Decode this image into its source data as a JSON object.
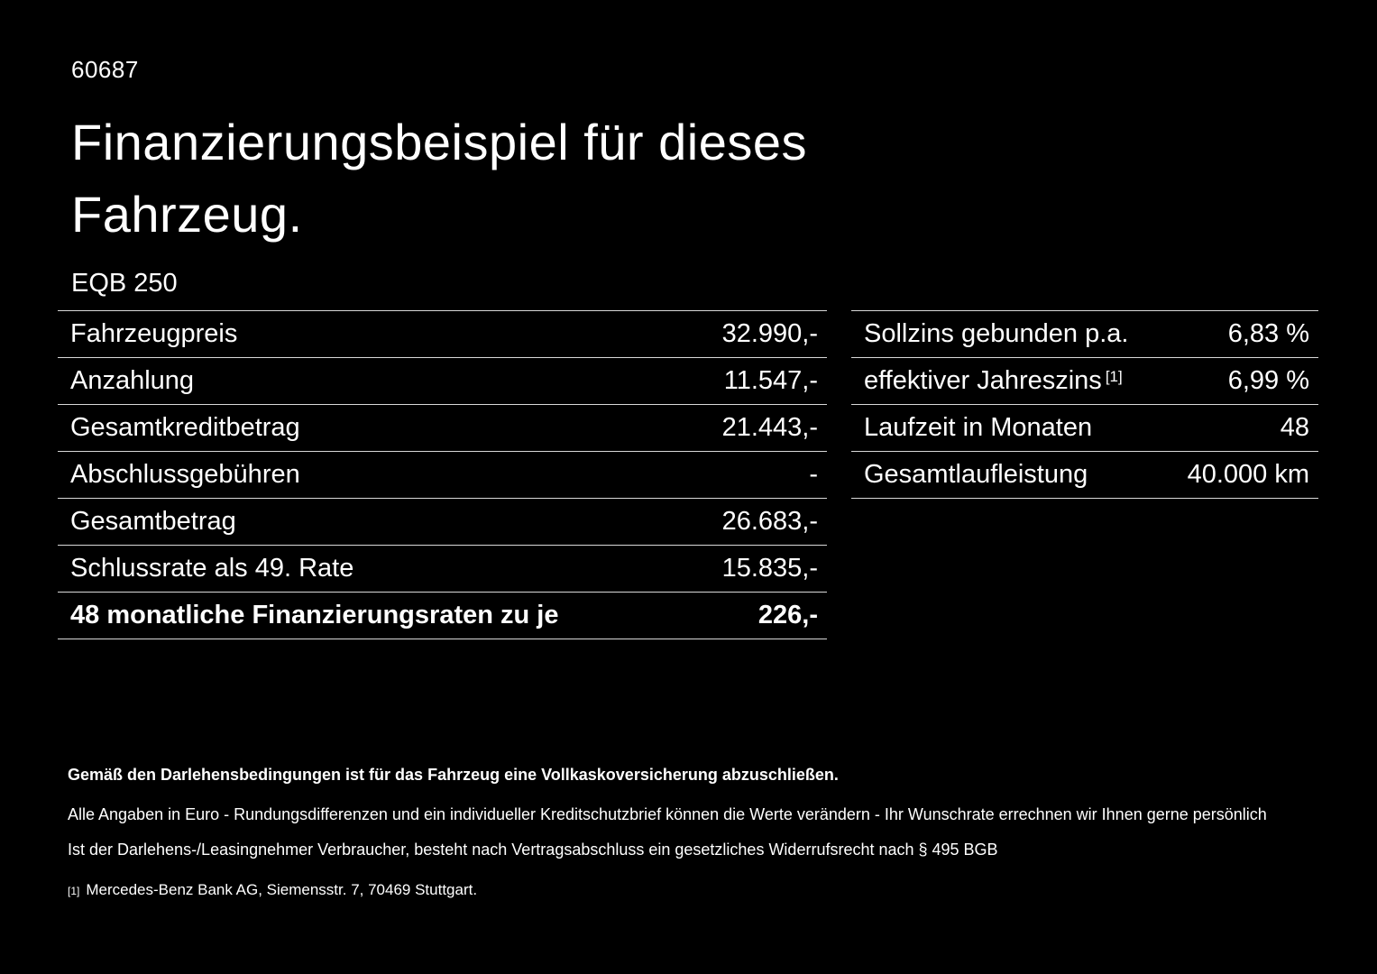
{
  "page": {
    "id_number": "60687",
    "title_line1": "Finanzierungsbeispiel für dieses",
    "title_line2": "Fahrzeug.",
    "model": "EQB 250"
  },
  "left_table": {
    "rows": [
      {
        "label": "Fahrzeugpreis",
        "value": "32.990,-"
      },
      {
        "label": "Anzahlung",
        "value": "11.547,-"
      },
      {
        "label": "Gesamtkreditbetrag",
        "value": "21.443,-"
      },
      {
        "label": "Abschlussgebühren",
        "value": "-"
      },
      {
        "label": "Gesamtbetrag",
        "value": "26.683,-"
      },
      {
        "label": "Schlussrate als 49. Rate",
        "value": "15.835,-"
      },
      {
        "label": "48 monatliche Finanzierungsraten zu je",
        "value": "226,-"
      }
    ]
  },
  "right_table": {
    "rows": [
      {
        "label": "Sollzins gebunden p.a.",
        "sup": "",
        "value": "6,83 %"
      },
      {
        "label": "effektiver Jahreszins",
        "sup": "[1]",
        "value": "6,99 %"
      },
      {
        "label": "Laufzeit in Monaten",
        "sup": "",
        "value": "48"
      },
      {
        "label": "Gesamtlaufleistung",
        "sup": "",
        "value": "40.000 km"
      }
    ]
  },
  "footer": {
    "bold_note": "Gemäß den Darlehensbedingungen ist für das Fahrzeug eine Vollkaskoversicherung abzuschließen.",
    "note_line1": "Alle Angaben in Euro - Rundungsdifferenzen und ein individueller Kreditschutzbrief können die Werte verändern - Ihr Wunschrate errechnen wir Ihnen gerne persönlich",
    "note_line2": "Ist der Darlehens-/Leasingnehmer Verbraucher, besteht nach Vertragsabschluss ein gesetzliches Widerrufsrecht nach § 495 BGB",
    "footnote_marker": "[1]",
    "footnote_text": "Mercedes-Benz Bank AG, Siemensstr. 7, 70469 Stuttgart."
  }
}
